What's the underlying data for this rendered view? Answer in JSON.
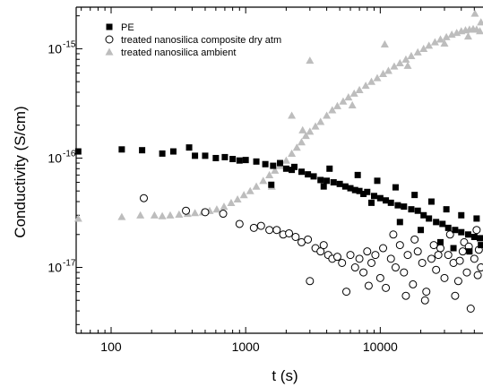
{
  "chart_data": {
    "type": "scatter",
    "xlabel": "t (s)",
    "ylabel": "Conductivity (S/cm)",
    "x_scale": "log",
    "y_scale": "log",
    "xlim": [
      55,
      58000
    ],
    "ylim": [
      2.5e-18,
      2.4e-15
    ],
    "x_ticks": [
      {
        "value": 100,
        "label": "100"
      },
      {
        "value": 1000,
        "label": "1000"
      },
      {
        "value": 10000,
        "label": "10000"
      }
    ],
    "y_ticks": [
      {
        "value": 1e-17,
        "label": "10",
        "exp": "-17"
      },
      {
        "value": 1e-16,
        "label": "10",
        "exp": "-16"
      },
      {
        "value": 1e-15,
        "label": "10",
        "exp": "-15"
      }
    ],
    "legend_position": "top-left",
    "grid": false,
    "series": [
      {
        "name": "PE",
        "marker": "filled-square",
        "color": "#000000",
        "points": [
          [
            57,
            1.15e-16
          ],
          [
            120,
            1.2e-16
          ],
          [
            170,
            1.18e-16
          ],
          [
            240,
            1.1e-16
          ],
          [
            290,
            1.15e-16
          ],
          [
            380,
            1.25e-16
          ],
          [
            420,
            1.05e-16
          ],
          [
            500,
            1.05e-16
          ],
          [
            600,
            1e-16
          ],
          [
            700,
            1.02e-16
          ],
          [
            800,
            9.8e-17
          ],
          [
            900,
            9.5e-17
          ],
          [
            1000,
            9.6e-17
          ],
          [
            1200,
            9.3e-17
          ],
          [
            1400,
            8.8e-17
          ],
          [
            1600,
            8.5e-17
          ],
          [
            1800,
            9e-17
          ],
          [
            2000,
            8e-17
          ],
          [
            2300,
            8.3e-17
          ],
          [
            2600,
            7.5e-17
          ],
          [
            2900,
            7.1e-17
          ],
          [
            3200,
            6.8e-17
          ],
          [
            3600,
            6.3e-17
          ],
          [
            4000,
            6.2e-17
          ],
          [
            4500,
            6e-17
          ],
          [
            5000,
            5.8e-17
          ],
          [
            5500,
            5.5e-17
          ],
          [
            6000,
            5.3e-17
          ],
          [
            6500,
            5.1e-17
          ],
          [
            7000,
            5e-17
          ],
          [
            7500,
            4.7e-17
          ],
          [
            8000,
            4.9e-17
          ],
          [
            9000,
            4.5e-17
          ],
          [
            10000,
            4.3e-17
          ],
          [
            11000,
            4.1e-17
          ],
          [
            12000,
            3.9e-17
          ],
          [
            13500,
            3.7e-17
          ],
          [
            15000,
            3.6e-17
          ],
          [
            17000,
            3.4e-17
          ],
          [
            19000,
            3.3e-17
          ],
          [
            21000,
            3e-17
          ],
          [
            23000,
            2.8e-17
          ],
          [
            26000,
            2.6e-17
          ],
          [
            29000,
            2.5e-17
          ],
          [
            32000,
            2.3e-17
          ],
          [
            36000,
            2.2e-17
          ],
          [
            40000,
            2.1e-17
          ],
          [
            45000,
            2e-17
          ],
          [
            50000,
            1.9e-17
          ],
          [
            55000,
            1.85e-17
          ],
          [
            4200,
            8e-17
          ],
          [
            6800,
            7e-17
          ],
          [
            9500,
            6.2e-17
          ],
          [
            13000,
            5.4e-17
          ],
          [
            18000,
            4.6e-17
          ],
          [
            24000,
            4e-17
          ],
          [
            31000,
            3.4e-17
          ],
          [
            40000,
            3e-17
          ],
          [
            52000,
            2.8e-17
          ],
          [
            14000,
            2.6e-17
          ],
          [
            20000,
            2.2e-17
          ],
          [
            28000,
            1.7e-17
          ],
          [
            35000,
            1.5e-17
          ],
          [
            46000,
            1.4e-17
          ],
          [
            56000,
            1.6e-17
          ],
          [
            1550,
            5.7e-17
          ],
          [
            2200,
            7.8e-17
          ],
          [
            3800,
            5.5e-17
          ],
          [
            8600,
            3.9e-17
          ]
        ]
      },
      {
        "name": "treated nanosilica composite dry atm",
        "marker": "open-circle",
        "color": "#000000",
        "points": [
          [
            175,
            4.3e-17
          ],
          [
            360,
            3.3e-17
          ],
          [
            500,
            3.2e-17
          ],
          [
            680,
            3.1e-17
          ],
          [
            900,
            2.5e-17
          ],
          [
            1150,
            2.3e-17
          ],
          [
            1300,
            2.4e-17
          ],
          [
            1500,
            2.2e-17
          ],
          [
            1700,
            2.2e-17
          ],
          [
            1900,
            2e-17
          ],
          [
            2100,
            2.05e-17
          ],
          [
            2350,
            1.9e-17
          ],
          [
            2600,
            1.7e-17
          ],
          [
            2900,
            1.8e-17
          ],
          [
            3000,
            7.5e-18
          ],
          [
            3300,
            1.5e-17
          ],
          [
            3600,
            1.4e-17
          ],
          [
            3800,
            1.6e-17
          ],
          [
            4100,
            1.3e-17
          ],
          [
            4400,
            1.2e-17
          ],
          [
            4800,
            1.25e-17
          ],
          [
            5200,
            1.1e-17
          ],
          [
            5600,
            6e-18
          ],
          [
            6000,
            1.3e-17
          ],
          [
            6500,
            1e-17
          ],
          [
            7000,
            1.2e-17
          ],
          [
            7500,
            9e-18
          ],
          [
            8000,
            1.4e-17
          ],
          [
            8600,
            1.1e-17
          ],
          [
            9200,
            1.3e-17
          ],
          [
            10000,
            8e-18
          ],
          [
            10500,
            1.5e-17
          ],
          [
            11000,
            6.5e-18
          ],
          [
            12000,
            1.2e-17
          ],
          [
            13000,
            1e-17
          ],
          [
            14000,
            1.6e-17
          ],
          [
            15000,
            9e-18
          ],
          [
            16000,
            1.3e-17
          ],
          [
            17500,
            7e-18
          ],
          [
            19000,
            1.4e-17
          ],
          [
            20500,
            1.1e-17
          ],
          [
            22000,
            6e-18
          ],
          [
            24000,
            1.2e-17
          ],
          [
            26000,
            9.5e-18
          ],
          [
            28000,
            1.5e-17
          ],
          [
            30000,
            8e-18
          ],
          [
            32000,
            1.3e-17
          ],
          [
            35000,
            1.1e-17
          ],
          [
            38000,
            7.5e-18
          ],
          [
            41000,
            1.4e-17
          ],
          [
            44000,
            9e-18
          ],
          [
            47000,
            4.2e-18
          ],
          [
            50000,
            1.2e-17
          ],
          [
            53000,
            8.5e-18
          ],
          [
            56000,
            1e-17
          ],
          [
            12500,
            2e-17
          ],
          [
            18000,
            1.8e-17
          ],
          [
            25000,
            1.6e-17
          ],
          [
            33000,
            2e-17
          ],
          [
            42000,
            1.7e-17
          ],
          [
            52000,
            2.2e-17
          ],
          [
            15500,
            5.5e-18
          ],
          [
            21500,
            5e-18
          ],
          [
            36000,
            5.5e-18
          ],
          [
            8200,
            6.8e-18
          ],
          [
            27000,
            1.3e-17
          ],
          [
            39000,
            1.15e-17
          ],
          [
            45500,
            1.55e-17
          ],
          [
            54000,
            1.45e-17
          ]
        ]
      },
      {
        "name": "treated nanosilica ambient",
        "marker": "filled-triangle",
        "color": "#bdbdbd",
        "points": [
          [
            57,
            2.8e-17
          ],
          [
            120,
            2.9e-17
          ],
          [
            165,
            3e-17
          ],
          [
            210,
            3e-17
          ],
          [
            240,
            2.95e-17
          ],
          [
            275,
            3e-17
          ],
          [
            320,
            3.05e-17
          ],
          [
            370,
            3.1e-17
          ],
          [
            420,
            3.15e-17
          ],
          [
            480,
            3.2e-17
          ],
          [
            540,
            3.3e-17
          ],
          [
            610,
            3.4e-17
          ],
          [
            690,
            3.6e-17
          ],
          [
            780,
            3.9e-17
          ],
          [
            870,
            4.2e-17
          ],
          [
            970,
            4.6e-17
          ],
          [
            1080,
            5e-17
          ],
          [
            1200,
            5.5e-17
          ],
          [
            1350,
            6.2e-17
          ],
          [
            1500,
            7e-17
          ],
          [
            1650,
            7.7e-17
          ],
          [
            1800,
            8.5e-17
          ],
          [
            2000,
            9.5e-17
          ],
          [
            2200,
            1.1e-16
          ],
          [
            2400,
            1.25e-16
          ],
          [
            2600,
            1.4e-16
          ],
          [
            2800,
            1.6e-16
          ],
          [
            3000,
            1.75e-16
          ],
          [
            3300,
            1.95e-16
          ],
          [
            3600,
            2.15e-16
          ],
          [
            4000,
            2.45e-16
          ],
          [
            4400,
            2.75e-16
          ],
          [
            4800,
            3e-16
          ],
          [
            5300,
            3.3e-16
          ],
          [
            5800,
            3.6e-16
          ],
          [
            6400,
            3.9e-16
          ],
          [
            7000,
            4.2e-16
          ],
          [
            7800,
            4.6e-16
          ],
          [
            8600,
            5e-16
          ],
          [
            9500,
            5.4e-16
          ],
          [
            10500,
            5.9e-16
          ],
          [
            11500,
            6.3e-16
          ],
          [
            12700,
            6.9e-16
          ],
          [
            14000,
            7.4e-16
          ],
          [
            15500,
            8e-16
          ],
          [
            17000,
            8.6e-16
          ],
          [
            19000,
            9.3e-16
          ],
          [
            21000,
            1e-15
          ],
          [
            23000,
            1.07e-15
          ],
          [
            25500,
            1.15e-15
          ],
          [
            28000,
            1.22e-15
          ],
          [
            31000,
            1.28e-15
          ],
          [
            34000,
            1.35e-15
          ],
          [
            37000,
            1.4e-15
          ],
          [
            40000,
            1.45e-15
          ],
          [
            43000,
            1.48e-15
          ],
          [
            46000,
            1.5e-15
          ],
          [
            49000,
            1.52e-15
          ],
          [
            52000,
            1.5e-15
          ],
          [
            55000,
            1.45e-15
          ],
          [
            50500,
            2.1e-15
          ],
          [
            56000,
            1.75e-15
          ],
          [
            3000,
            7.8e-16
          ],
          [
            10800,
            1.1e-15
          ],
          [
            2200,
            2.45e-16
          ],
          [
            2650,
            1.8e-16
          ],
          [
            1560,
            5.5e-17
          ],
          [
            6200,
            3.05e-16
          ],
          [
            16000,
            7e-16
          ],
          [
            30000,
            1.12e-15
          ],
          [
            45000,
            1.3e-15
          ]
        ]
      }
    ]
  }
}
